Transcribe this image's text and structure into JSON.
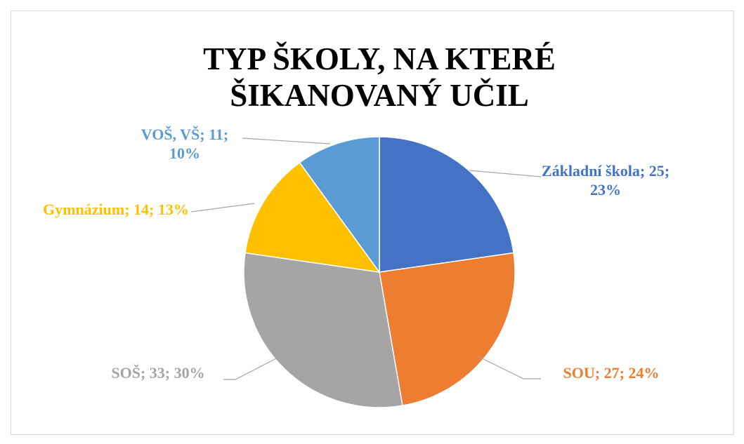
{
  "chart_data": {
    "type": "pie",
    "title": "TYP ŠKOLY, NA KTERÉ ŠIKANOVANÝ UČIL",
    "values": [
      25,
      27,
      33,
      14,
      11
    ],
    "value_labels": [
      "Základní škola; 25; 23%",
      "SOU; 27; 24%",
      "SOŠ; 33; 30%",
      "Gymnázium; 14; 13%",
      "VOŠ, VŠ; 11; 10%"
    ],
    "colors": [
      "#4472c4",
      "#ed7d31",
      "#a5a5a5",
      "#ffc000",
      "#5b9bd5"
    ]
  }
}
